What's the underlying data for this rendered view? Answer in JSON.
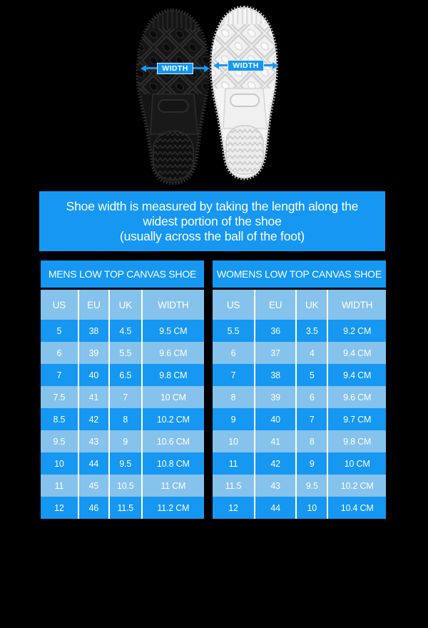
{
  "colors": {
    "background": "#000000",
    "accent_blue": "#1597F2",
    "light_blue": "#85C2EC",
    "text_white": "#FFFFFF"
  },
  "sole_diagram": {
    "left_sole": {
      "description": "black canvas shoe outsole",
      "arrow_label": "WIDTH"
    },
    "right_sole": {
      "description": "white canvas shoe outsole",
      "arrow_label": "WIDTH"
    }
  },
  "banner": {
    "lines": [
      "Shoe width is measured by taking the length along the",
      "widest portion of the shoe",
      "(usually across the ball of the foot)"
    ]
  },
  "chart_data": [
    {
      "type": "table",
      "title": "MENS LOW TOP CANVAS SHOE",
      "columns": [
        "US",
        "EU",
        "UK",
        "WIDTH"
      ],
      "rows": [
        [
          "5",
          "38",
          "4.5",
          "9.5 CM"
        ],
        [
          "6",
          "39",
          "5.5",
          "9.6 CM"
        ],
        [
          "7",
          "40",
          "6.5",
          "9.8 CM"
        ],
        [
          "7.5",
          "41",
          "7",
          "10 CM"
        ],
        [
          "8.5",
          "42",
          "8",
          "10.2 CM"
        ],
        [
          "9.5",
          "43",
          "9",
          "10.6 CM"
        ],
        [
          "10",
          "44",
          "9.5",
          "10.8 CM"
        ],
        [
          "11",
          "45",
          "10.5",
          "11 CM"
        ],
        [
          "12",
          "46",
          "11.5",
          "11.2 CM"
        ]
      ]
    },
    {
      "type": "table",
      "title": "WOMENS LOW TOP CANVAS SHOE",
      "columns": [
        "US",
        "EU",
        "UK",
        "WIDTH"
      ],
      "rows": [
        [
          "5.5",
          "36",
          "3.5",
          "9.2 CM"
        ],
        [
          "6",
          "37",
          "4",
          "9.4 CM"
        ],
        [
          "7",
          "38",
          "5",
          "9.4 CM"
        ],
        [
          "8",
          "39",
          "6",
          "9.6 CM"
        ],
        [
          "9",
          "40",
          "7",
          "9.7 CM"
        ],
        [
          "10",
          "41",
          "8",
          "9.8 CM"
        ],
        [
          "11",
          "42",
          "9",
          "10 CM"
        ],
        [
          "11.5",
          "43",
          "9.5",
          "10.2 CM"
        ],
        [
          "12",
          "44",
          "10",
          "10.4 CM"
        ]
      ]
    }
  ]
}
